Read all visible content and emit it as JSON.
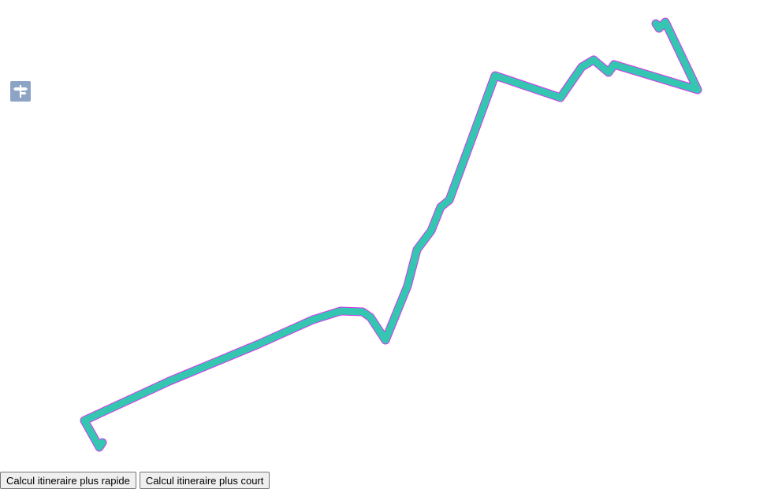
{
  "map": {
    "routing_control_icon": "signpost-icon",
    "route": {
      "fill_color": "#35c6b2",
      "outline_color": "#d733ee"
    }
  },
  "colors": {
    "control_background": "#8ea4c6",
    "control_icon": "#ffffff"
  },
  "buttons": {
    "fastest_label": "Calcul itineraire plus rapide",
    "shortest_label": "Calcul itineraire plus court"
  }
}
